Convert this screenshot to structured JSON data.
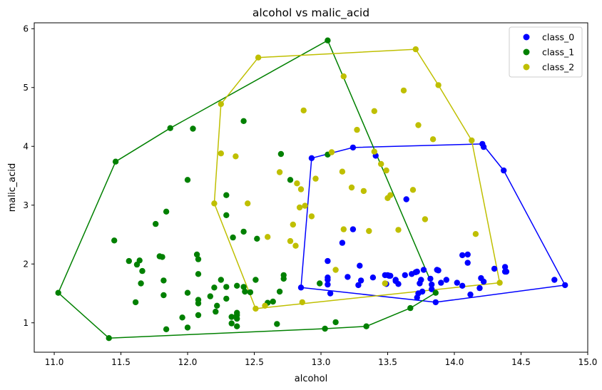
{
  "chart_data": {
    "type": "scatter",
    "title": "alcohol vs malic_acid",
    "xlabel": "alcohol",
    "ylabel": "malic_acid",
    "xlim": [
      10.85,
      15.0
    ],
    "ylim": [
      0.5,
      6.1
    ],
    "xticks": [
      11.0,
      11.5,
      12.0,
      12.5,
      13.0,
      13.5,
      14.0,
      14.5,
      15.0
    ],
    "xtick_labels": [
      "11.0",
      "11.5",
      "12.0",
      "12.5",
      "13.0",
      "13.5",
      "14.0",
      "14.5",
      "15.0"
    ],
    "yticks": [
      1,
      2,
      3,
      4,
      5,
      6
    ],
    "ytick_labels": [
      "1",
      "2",
      "3",
      "4",
      "5",
      "6"
    ],
    "grid": false,
    "legend_position": "top-right",
    "series": [
      {
        "name": "class_0",
        "color": "#0000ff",
        "points": [
          [
            14.83,
            1.64
          ],
          [
            14.75,
            1.73
          ],
          [
            14.39,
            1.87
          ],
          [
            14.38,
            1.87
          ],
          [
            14.38,
            1.95
          ],
          [
            14.37,
            3.59
          ],
          [
            14.3,
            1.92
          ],
          [
            14.22,
            3.99
          ],
          [
            14.21,
            4.04
          ],
          [
            14.22,
            1.7
          ],
          [
            14.2,
            1.76
          ],
          [
            14.19,
            1.59
          ],
          [
            14.12,
            1.48
          ],
          [
            14.1,
            2.16
          ],
          [
            14.1,
            2.02
          ],
          [
            14.06,
            2.15
          ],
          [
            14.06,
            1.63
          ],
          [
            14.02,
            1.68
          ],
          [
            13.94,
            1.73
          ],
          [
            13.9,
            1.68
          ],
          [
            13.88,
            1.89
          ],
          [
            13.87,
            1.9
          ],
          [
            13.86,
            1.35
          ],
          [
            13.83,
            1.65
          ],
          [
            13.83,
            1.57
          ],
          [
            13.82,
            1.75
          ],
          [
            13.77,
            1.9
          ],
          [
            13.76,
            1.53
          ],
          [
            13.75,
            1.73
          ],
          [
            13.74,
            1.67
          ],
          [
            13.73,
            1.5
          ],
          [
            13.72,
            1.43
          ],
          [
            13.72,
            1.87
          ],
          [
            13.71,
            1.86
          ],
          [
            13.68,
            1.83
          ],
          [
            13.64,
            3.1
          ],
          [
            13.63,
            1.81
          ],
          [
            13.58,
            1.66
          ],
          [
            13.56,
            1.73
          ],
          [
            13.56,
            1.71
          ],
          [
            13.52,
            1.8
          ],
          [
            13.51,
            1.8
          ],
          [
            13.5,
            1.81
          ],
          [
            13.49,
            1.66
          ],
          [
            13.48,
            1.81
          ],
          [
            13.41,
            3.84
          ],
          [
            13.39,
            1.77
          ],
          [
            13.3,
            1.72
          ],
          [
            13.29,
            1.97
          ],
          [
            13.28,
            1.64
          ],
          [
            13.24,
            2.59
          ],
          [
            13.24,
            3.98
          ],
          [
            13.2,
            1.78
          ],
          [
            13.16,
            2.36
          ],
          [
            13.07,
            1.5
          ],
          [
            13.05,
            1.77
          ],
          [
            13.05,
            1.73
          ],
          [
            13.05,
            1.65
          ],
          [
            13.05,
            2.05
          ],
          [
            12.93,
            3.8
          ],
          [
            12.85,
            1.6
          ]
        ]
      },
      {
        "name": "class_1",
        "color": "#008000",
        "points": [
          [
            11.03,
            1.51
          ],
          [
            11.41,
            0.74
          ],
          [
            11.45,
            2.4
          ],
          [
            11.46,
            3.74
          ],
          [
            11.56,
            2.05
          ],
          [
            11.61,
            1.35
          ],
          [
            11.62,
            1.99
          ],
          [
            11.64,
            2.06
          ],
          [
            11.65,
            1.67
          ],
          [
            11.66,
            1.88
          ],
          [
            11.76,
            2.68
          ],
          [
            11.79,
            2.13
          ],
          [
            11.81,
            2.12
          ],
          [
            11.82,
            1.72
          ],
          [
            11.82,
            1.47
          ],
          [
            11.84,
            2.89
          ],
          [
            11.84,
            0.89
          ],
          [
            11.87,
            4.31
          ],
          [
            11.96,
            1.09
          ],
          [
            12.0,
            0.92
          ],
          [
            12.0,
            3.43
          ],
          [
            12.0,
            1.51
          ],
          [
            12.04,
            4.3
          ],
          [
            12.07,
            2.16
          ],
          [
            12.08,
            2.08
          ],
          [
            12.08,
            1.83
          ],
          [
            12.08,
            1.33
          ],
          [
            12.08,
            1.13
          ],
          [
            12.08,
            1.39
          ],
          [
            12.17,
            1.45
          ],
          [
            12.2,
            1.6
          ],
          [
            12.21,
            1.19
          ],
          [
            12.22,
            1.29
          ],
          [
            12.25,
            1.73
          ],
          [
            12.29,
            1.61
          ],
          [
            12.29,
            1.41
          ],
          [
            12.29,
            2.83
          ],
          [
            12.29,
            3.17
          ],
          [
            12.33,
            0.99
          ],
          [
            12.34,
            2.45
          ],
          [
            12.33,
            1.1
          ],
          [
            12.37,
            1.13
          ],
          [
            12.37,
            1.17
          ],
          [
            12.37,
            0.94
          ],
          [
            12.37,
            1.07
          ],
          [
            12.37,
            1.63
          ],
          [
            12.42,
            4.43
          ],
          [
            12.42,
            2.55
          ],
          [
            12.43,
            1.53
          ],
          [
            12.42,
            1.61
          ],
          [
            12.47,
            1.52
          ],
          [
            12.51,
            1.73
          ],
          [
            12.52,
            2.43
          ],
          [
            12.6,
            1.34
          ],
          [
            12.64,
            1.36
          ],
          [
            12.67,
            0.98
          ],
          [
            12.69,
            1.53
          ],
          [
            12.7,
            3.87
          ],
          [
            12.72,
            1.81
          ],
          [
            12.72,
            1.75
          ],
          [
            12.77,
            3.43
          ],
          [
            12.99,
            1.67
          ],
          [
            13.05,
            3.86
          ],
          [
            13.05,
            5.8
          ],
          [
            13.03,
            0.9
          ],
          [
            13.11,
            1.01
          ],
          [
            13.34,
            0.94
          ],
          [
            13.67,
            1.25
          ],
          [
            13.86,
            1.51
          ]
        ]
      },
      {
        "name": "class_2",
        "color": "#bfbf00",
        "points": [
          [
            12.2,
            3.03
          ],
          [
            12.25,
            4.72
          ],
          [
            12.25,
            3.88
          ],
          [
            12.36,
            3.83
          ],
          [
            12.45,
            3.03
          ],
          [
            12.51,
            1.24
          ],
          [
            12.53,
            5.51
          ],
          [
            12.58,
            1.29
          ],
          [
            12.6,
            2.46
          ],
          [
            12.69,
            3.56
          ],
          [
            12.77,
            2.39
          ],
          [
            12.79,
            2.67
          ],
          [
            12.81,
            2.31
          ],
          [
            12.82,
            3.37
          ],
          [
            12.84,
            2.96
          ],
          [
            12.85,
            3.27
          ],
          [
            12.86,
            1.35
          ],
          [
            12.87,
            4.61
          ],
          [
            12.88,
            2.99
          ],
          [
            12.93,
            2.81
          ],
          [
            12.96,
            3.45
          ],
          [
            13.08,
            3.9
          ],
          [
            13.11,
            1.9
          ],
          [
            13.16,
            3.57
          ],
          [
            13.17,
            5.19
          ],
          [
            13.17,
            2.59
          ],
          [
            13.23,
            3.3
          ],
          [
            13.27,
            4.28
          ],
          [
            13.32,
            3.24
          ],
          [
            13.36,
            2.56
          ],
          [
            13.4,
            3.91
          ],
          [
            13.4,
            4.6
          ],
          [
            13.45,
            3.7
          ],
          [
            13.48,
            1.67
          ],
          [
            13.49,
            3.59
          ],
          [
            13.5,
            3.12
          ],
          [
            13.52,
            3.17
          ],
          [
            13.58,
            2.58
          ],
          [
            13.62,
            4.95
          ],
          [
            13.69,
            3.26
          ],
          [
            13.71,
            5.65
          ],
          [
            13.73,
            4.36
          ],
          [
            13.78,
            2.76
          ],
          [
            13.84,
            4.12
          ],
          [
            13.88,
            5.04
          ],
          [
            14.13,
            4.1
          ],
          [
            14.16,
            2.51
          ],
          [
            14.34,
            1.68
          ]
        ]
      }
    ],
    "hulls": [
      {
        "series": "class_0",
        "color": "#0000ff",
        "vertices": [
          [
            12.85,
            1.6
          ],
          [
            13.86,
            1.35
          ],
          [
            14.83,
            1.64
          ],
          [
            14.37,
            3.59
          ],
          [
            14.21,
            4.04
          ],
          [
            13.24,
            3.98
          ],
          [
            12.93,
            3.8
          ]
        ]
      },
      {
        "series": "class_1",
        "color": "#008000",
        "vertices": [
          [
            11.41,
            0.74
          ],
          [
            13.03,
            0.9
          ],
          [
            13.34,
            0.94
          ],
          [
            13.67,
            1.25
          ],
          [
            13.86,
            1.51
          ],
          [
            13.05,
            5.8
          ],
          [
            11.87,
            4.31
          ],
          [
            11.46,
            3.74
          ],
          [
            11.03,
            1.51
          ]
        ]
      },
      {
        "series": "class_2",
        "color": "#bfbf00",
        "vertices": [
          [
            12.51,
            1.24
          ],
          [
            14.34,
            1.68
          ],
          [
            14.13,
            4.1
          ],
          [
            13.88,
            5.04
          ],
          [
            13.71,
            5.65
          ],
          [
            12.53,
            5.51
          ],
          [
            12.25,
            4.72
          ],
          [
            12.2,
            3.03
          ]
        ]
      }
    ]
  }
}
